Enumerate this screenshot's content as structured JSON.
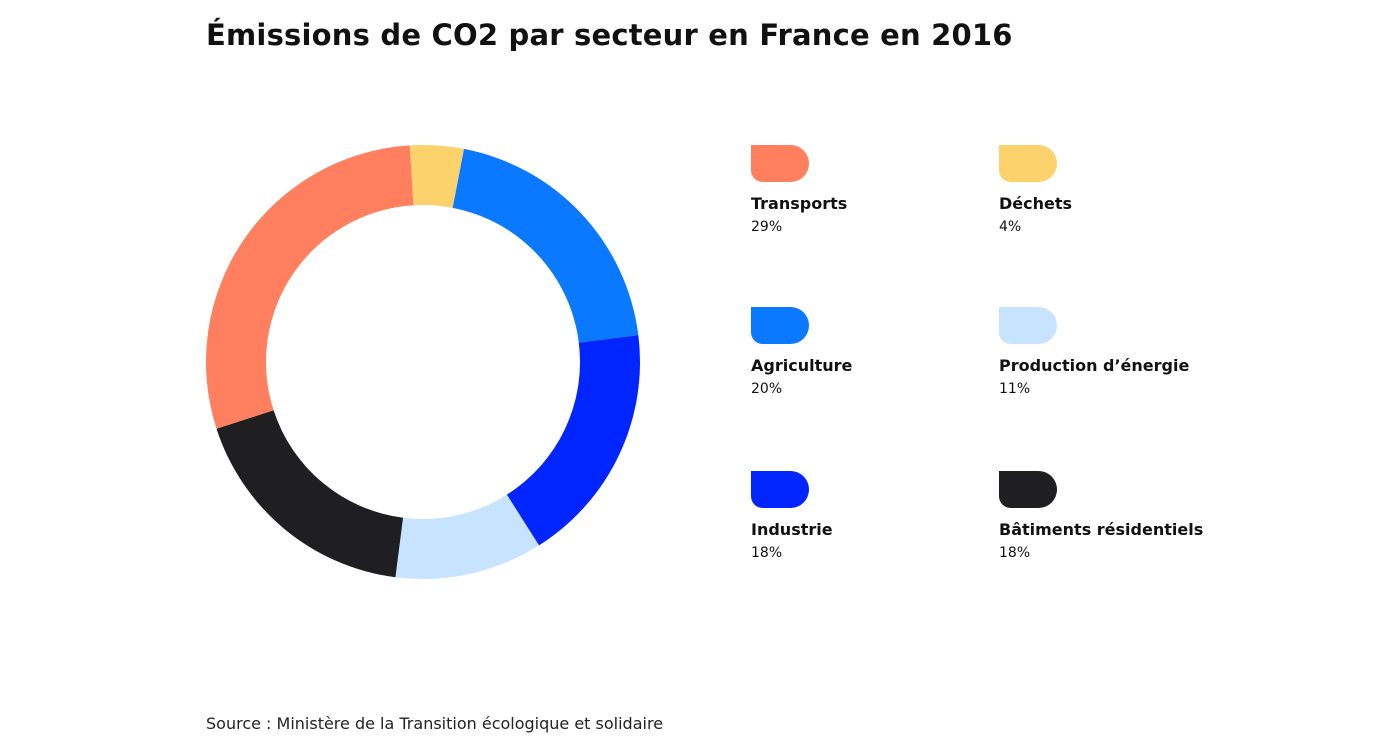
{
  "title": "Émissions de CO2 par secteur en France en 2016",
  "source": "Source : Ministère de la Transition écologique et solidaire",
  "chart_data": {
    "type": "pie",
    "variant": "donut",
    "title": "Émissions de CO2 par secteur en France en 2016",
    "unit": "%",
    "legend_position": "right",
    "slices_clockwise_from_top": [
      "Déchets",
      "Agriculture",
      "Industrie",
      "Production d’énergie",
      "Bâtiments résidentiels",
      "Transports"
    ],
    "series": [
      {
        "label": "Transports",
        "value": 29,
        "pct_text": "29%",
        "color": "#FF7F5E"
      },
      {
        "label": "Déchets",
        "value": 4,
        "pct_text": "4%",
        "color": "#FBD26B"
      },
      {
        "label": "Agriculture",
        "value": 20,
        "pct_text": "20%",
        "color": "#0A78FF"
      },
      {
        "label": "Production d’énergie",
        "value": 11,
        "pct_text": "11%",
        "color": "#C7E3FF"
      },
      {
        "label": "Industrie",
        "value": 18,
        "pct_text": "18%",
        "color": "#0025FF"
      },
      {
        "label": "Bâtiments résidentiels",
        "value": 18,
        "pct_text": "18%",
        "color": "#1F1F21"
      }
    ]
  }
}
